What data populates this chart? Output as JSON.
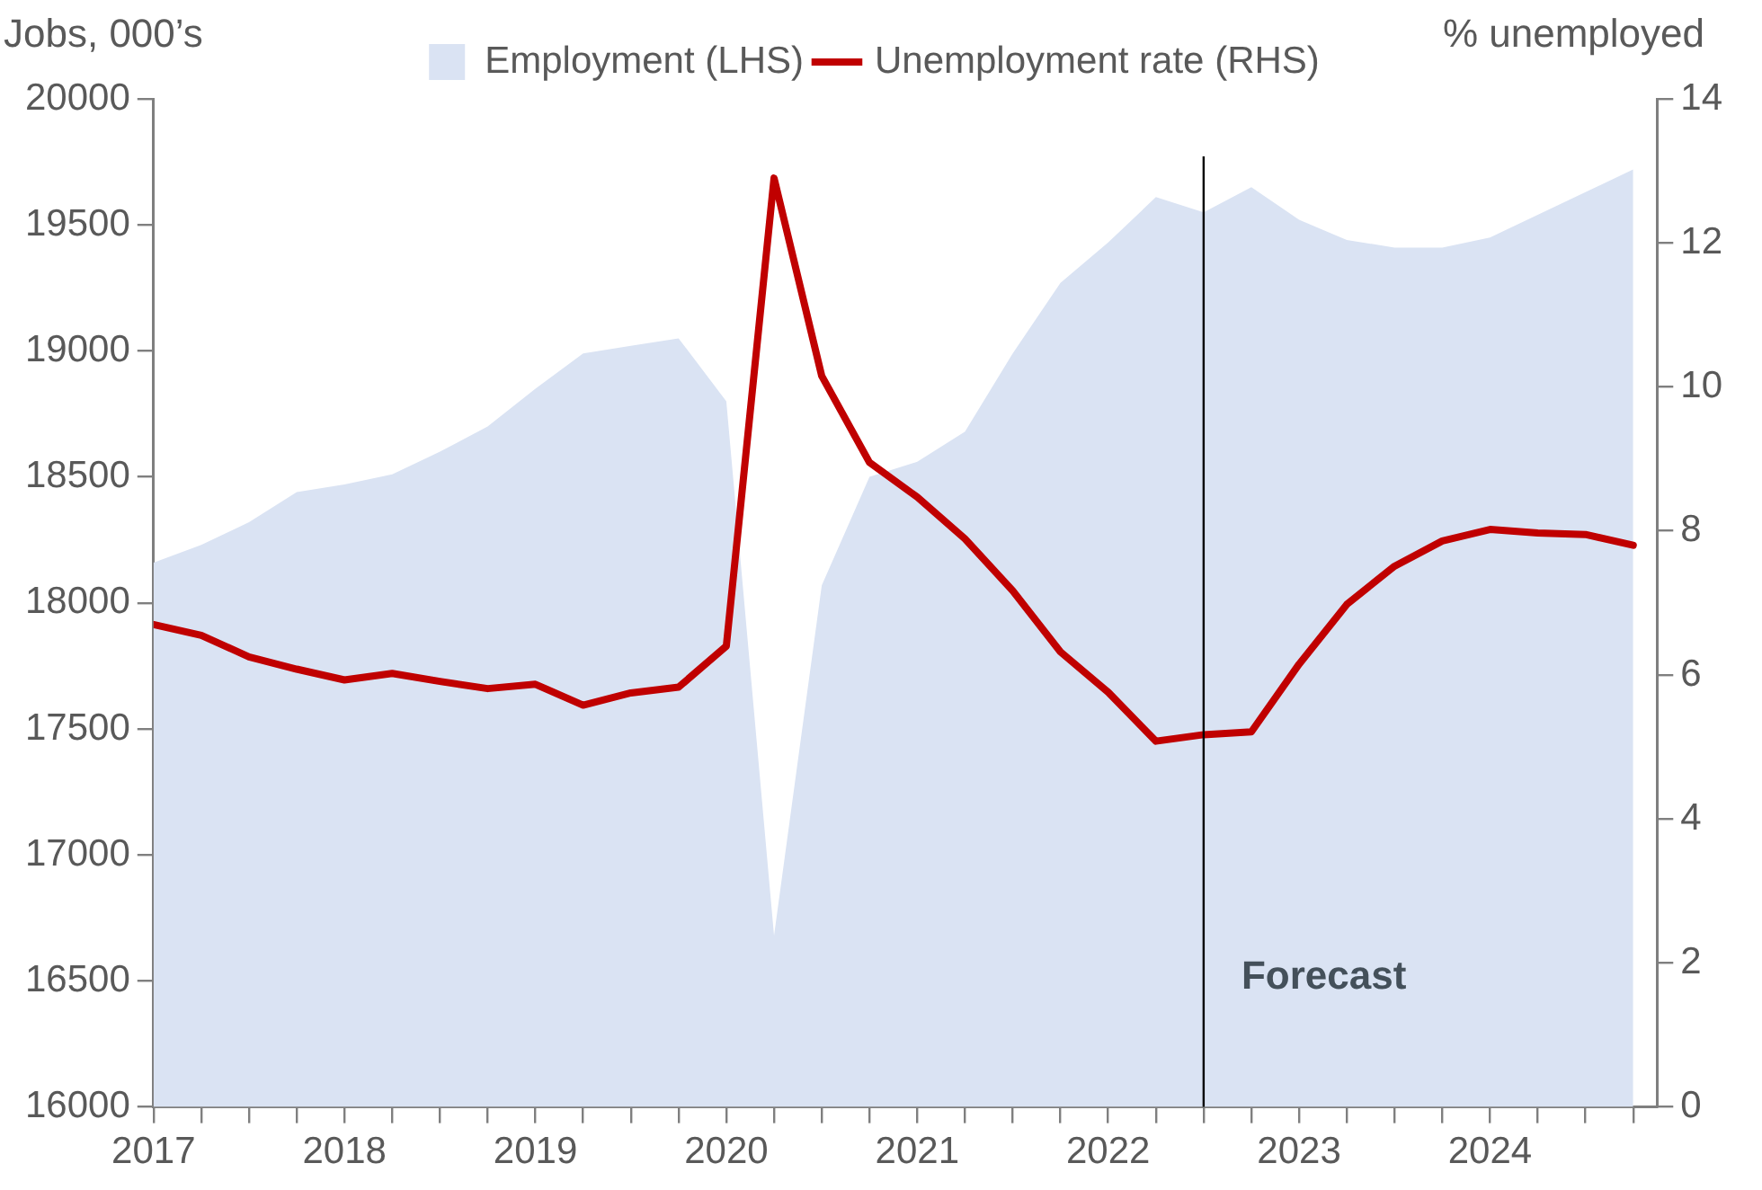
{
  "chart_data": {
    "type": "area",
    "ylabel": "Jobs, 000’s",
    "y2label": "% unemployed",
    "x": [
      2017,
      2017.25,
      2017.5,
      2017.75,
      2018,
      2018.25,
      2018.5,
      2018.75,
      2019,
      2019.25,
      2019.5,
      2019.75,
      2020,
      2020.25,
      2020.5,
      2020.75,
      2021,
      2021.25,
      2021.5,
      2021.75,
      2022,
      2022.25,
      2022.5,
      2022.75,
      2023,
      2023.25,
      2023.5,
      2023.75,
      2024,
      2024.25,
      2024.5,
      2024.75
    ],
    "series": [
      {
        "name": "Employment (LHS)",
        "color": "#dae3f3",
        "values": [
          18160,
          18230,
          18320,
          18440,
          18470,
          18510,
          18600,
          18700,
          18850,
          18990,
          19020,
          19050,
          18800,
          16680,
          18070,
          18500,
          18560,
          18680,
          18990,
          19270,
          19430,
          19610,
          19550,
          19650,
          19520,
          19440,
          19410,
          19410,
          19450,
          19540,
          19630,
          19720
        ]
      },
      {
        "name": "Unemployment rate (RHS)",
        "type": "line",
        "axis": "y2",
        "color": "#c00000",
        "values": [
          6.7,
          6.55,
          6.25,
          6.08,
          5.93,
          6.02,
          5.91,
          5.81,
          5.87,
          5.58,
          5.75,
          5.83,
          6.4,
          12.9,
          10.15,
          8.95,
          8.47,
          7.89,
          7.17,
          6.32,
          5.76,
          5.08,
          5.17,
          5.21,
          6.15,
          6.98,
          7.51,
          7.86,
          8.02,
          7.97,
          7.95,
          7.8
        ]
      }
    ],
    "xlim": [
      2017,
      2024.875
    ],
    "xticks": [
      2017,
      {
        "value": 2017.25,
        "label": null
      },
      {
        "value": 2017.5,
        "label": null
      },
      {
        "value": 2017.75,
        "label": null
      },
      2018,
      {
        "value": 2018.25,
        "label": null
      },
      {
        "value": 2018.5,
        "label": null
      },
      {
        "value": 2018.75,
        "label": null
      },
      2019,
      {
        "value": 2019.25,
        "label": null
      },
      {
        "value": 2019.5,
        "label": null
      },
      {
        "value": 2019.75,
        "label": null
      },
      2020,
      {
        "value": 2020.25,
        "label": null
      },
      {
        "value": 2020.5,
        "label": null
      },
      {
        "value": 2020.75,
        "label": null
      },
      2021,
      {
        "value": 2021.25,
        "label": null
      },
      {
        "value": 2021.5,
        "label": null
      },
      {
        "value": 2021.75,
        "label": null
      },
      2022,
      {
        "value": 2022.25,
        "label": null
      },
      {
        "value": 2022.5,
        "label": null
      },
      {
        "value": 2022.75,
        "label": null
      },
      2023,
      {
        "value": 2023.25,
        "label": null
      },
      {
        "value": 2023.5,
        "label": null
      },
      {
        "value": 2023.75,
        "label": null
      },
      2024,
      {
        "value": 2024.25,
        "label": null
      },
      {
        "value": 2024.5,
        "label": null
      },
      {
        "value": 2024.75,
        "label": null
      }
    ],
    "ylim": [
      16000,
      20000
    ],
    "yticks": [
      16000,
      16500,
      17000,
      17500,
      18000,
      18500,
      19000,
      19500,
      20000
    ],
    "y2lim": [
      0,
      14
    ],
    "y2ticks": [
      0,
      2,
      4,
      6,
      8,
      10,
      12,
      14
    ],
    "ref_lines": [
      {
        "axis": "x",
        "value": 2022.5,
        "label": "Forecast",
        "color": "#000000"
      }
    ],
    "grid": false,
    "legend": "top",
    "marker": "none",
    "line_style": "solid"
  }
}
